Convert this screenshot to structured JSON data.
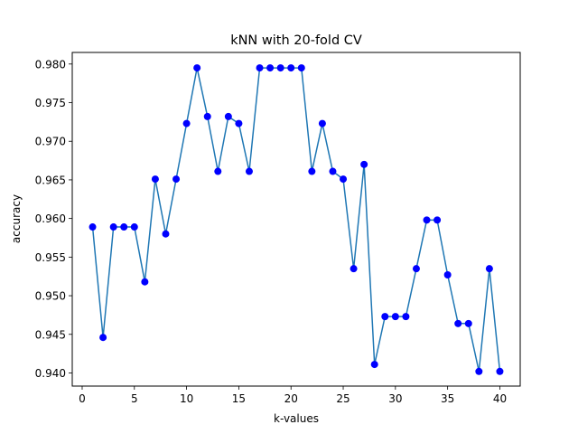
{
  "chart_data": {
    "type": "line",
    "title": "kNN with 20-fold CV",
    "xlabel": "k-values",
    "ylabel": "accuracy",
    "xlim": [
      -0.95,
      41.95
    ],
    "ylim": [
      0.9383,
      0.9815
    ],
    "xticks": [
      0,
      5,
      10,
      15,
      20,
      25,
      30,
      35,
      40
    ],
    "xtick_labels": [
      "0",
      "5",
      "10",
      "15",
      "20",
      "25",
      "30",
      "35",
      "40"
    ],
    "yticks": [
      0.94,
      0.945,
      0.95,
      0.955,
      0.96,
      0.965,
      0.97,
      0.975,
      0.98
    ],
    "ytick_labels": [
      "0.940",
      "0.945",
      "0.950",
      "0.955",
      "0.960",
      "0.965",
      "0.970",
      "0.975",
      "0.980"
    ],
    "grid": false,
    "line_color": "#1f77b4",
    "marker_color": "#0000ff",
    "x": [
      1,
      2,
      3,
      4,
      5,
      6,
      7,
      8,
      9,
      10,
      11,
      12,
      13,
      14,
      15,
      16,
      17,
      18,
      19,
      20,
      21,
      22,
      23,
      24,
      25,
      26,
      27,
      28,
      29,
      30,
      31,
      32,
      33,
      34,
      35,
      36,
      37,
      38,
      39,
      40
    ],
    "series": [
      {
        "values": [
          0.9589,
          0.9446,
          0.9589,
          0.9589,
          0.9589,
          0.9518,
          0.9651,
          0.958,
          0.9651,
          0.9723,
          0.9795,
          0.9732,
          0.9661,
          0.9732,
          0.9723,
          0.9661,
          0.9795,
          0.9795,
          0.9795,
          0.9795,
          0.9795,
          0.9661,
          0.9723,
          0.9661,
          0.9651,
          0.9535,
          0.967,
          0.9411,
          0.9473,
          0.9473,
          0.9473,
          0.9535,
          0.9598,
          0.9598,
          0.9527,
          0.9464,
          0.9464,
          0.9402,
          0.9535,
          0.9402
        ]
      }
    ]
  }
}
